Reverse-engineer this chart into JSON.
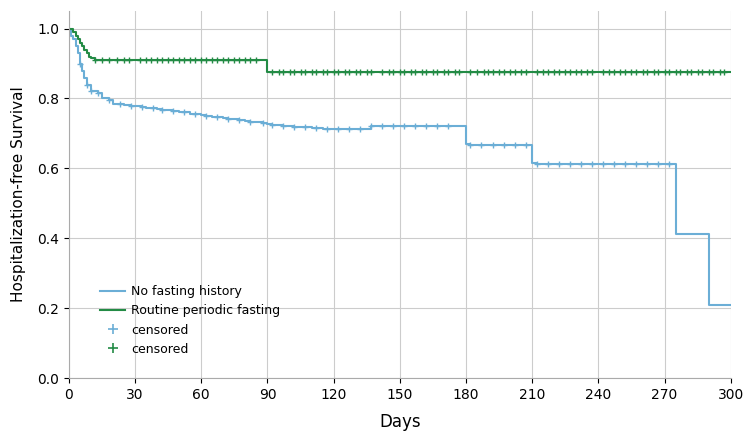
{
  "blue_steps": [
    [
      0,
      1.0
    ],
    [
      1,
      0.98
    ],
    [
      2,
      0.97
    ],
    [
      3,
      0.95
    ],
    [
      4,
      0.93
    ],
    [
      5,
      0.9
    ],
    [
      6,
      0.88
    ],
    [
      7,
      0.86
    ],
    [
      8,
      0.84
    ],
    [
      10,
      0.82
    ],
    [
      13,
      0.815
    ],
    [
      15,
      0.8
    ],
    [
      18,
      0.795
    ],
    [
      20,
      0.785
    ],
    [
      23,
      0.783
    ],
    [
      25,
      0.78
    ],
    [
      28,
      0.778
    ],
    [
      30,
      0.778
    ],
    [
      33,
      0.776
    ],
    [
      35,
      0.774
    ],
    [
      38,
      0.772
    ],
    [
      40,
      0.77
    ],
    [
      42,
      0.768
    ],
    [
      45,
      0.766
    ],
    [
      47,
      0.764
    ],
    [
      50,
      0.762
    ],
    [
      52,
      0.76
    ],
    [
      55,
      0.757
    ],
    [
      57,
      0.755
    ],
    [
      60,
      0.753
    ],
    [
      62,
      0.75
    ],
    [
      65,
      0.748
    ],
    [
      67,
      0.746
    ],
    [
      70,
      0.744
    ],
    [
      72,
      0.742
    ],
    [
      75,
      0.74
    ],
    [
      77,
      0.738
    ],
    [
      80,
      0.736
    ],
    [
      82,
      0.734
    ],
    [
      85,
      0.732
    ],
    [
      88,
      0.73
    ],
    [
      90,
      0.728
    ],
    [
      92,
      0.725
    ],
    [
      95,
      0.723
    ],
    [
      97,
      0.721
    ],
    [
      100,
      0.72
    ],
    [
      102,
      0.719
    ],
    [
      105,
      0.718
    ],
    [
      107,
      0.717
    ],
    [
      110,
      0.716
    ],
    [
      112,
      0.715
    ],
    [
      115,
      0.714
    ],
    [
      117,
      0.713
    ],
    [
      120,
      0.712
    ],
    [
      122,
      0.712
    ],
    [
      125,
      0.712
    ],
    [
      127,
      0.712
    ],
    [
      130,
      0.712
    ],
    [
      132,
      0.712
    ],
    [
      135,
      0.712
    ],
    [
      137,
      0.722
    ],
    [
      140,
      0.722
    ],
    [
      142,
      0.722
    ],
    [
      145,
      0.722
    ],
    [
      147,
      0.722
    ],
    [
      150,
      0.722
    ],
    [
      152,
      0.722
    ],
    [
      155,
      0.722
    ],
    [
      157,
      0.722
    ],
    [
      160,
      0.722
    ],
    [
      162,
      0.722
    ],
    [
      165,
      0.722
    ],
    [
      167,
      0.722
    ],
    [
      170,
      0.722
    ],
    [
      172,
      0.722
    ],
    [
      175,
      0.722
    ],
    [
      177,
      0.722
    ],
    [
      180,
      0.67
    ],
    [
      182,
      0.668
    ],
    [
      185,
      0.668
    ],
    [
      188,
      0.668
    ],
    [
      190,
      0.668
    ],
    [
      192,
      0.668
    ],
    [
      195,
      0.668
    ],
    [
      197,
      0.668
    ],
    [
      200,
      0.668
    ],
    [
      202,
      0.668
    ],
    [
      205,
      0.668
    ],
    [
      207,
      0.668
    ],
    [
      210,
      0.615
    ],
    [
      212,
      0.613
    ],
    [
      215,
      0.613
    ],
    [
      217,
      0.613
    ],
    [
      220,
      0.613
    ],
    [
      222,
      0.613
    ],
    [
      225,
      0.613
    ],
    [
      227,
      0.613
    ],
    [
      230,
      0.613
    ],
    [
      232,
      0.613
    ],
    [
      235,
      0.613
    ],
    [
      237,
      0.613
    ],
    [
      240,
      0.613
    ],
    [
      242,
      0.613
    ],
    [
      245,
      0.613
    ],
    [
      247,
      0.613
    ],
    [
      250,
      0.613
    ],
    [
      252,
      0.613
    ],
    [
      255,
      0.613
    ],
    [
      257,
      0.613
    ],
    [
      260,
      0.613
    ],
    [
      262,
      0.613
    ],
    [
      265,
      0.613
    ],
    [
      267,
      0.613
    ],
    [
      270,
      0.613
    ],
    [
      272,
      0.613
    ],
    [
      275,
      0.413
    ],
    [
      277,
      0.413
    ],
    [
      280,
      0.413
    ],
    [
      282,
      0.413
    ],
    [
      285,
      0.413
    ],
    [
      287,
      0.413
    ],
    [
      290,
      0.208
    ],
    [
      292,
      0.208
    ],
    [
      295,
      0.208
    ],
    [
      297,
      0.208
    ],
    [
      300,
      0.208
    ]
  ],
  "blue_censored": [
    [
      5,
      0.9
    ],
    [
      8,
      0.84
    ],
    [
      10,
      0.82
    ],
    [
      13,
      0.815
    ],
    [
      18,
      0.795
    ],
    [
      23,
      0.783
    ],
    [
      28,
      0.778
    ],
    [
      33,
      0.776
    ],
    [
      38,
      0.772
    ],
    [
      42,
      0.768
    ],
    [
      47,
      0.764
    ],
    [
      52,
      0.76
    ],
    [
      57,
      0.755
    ],
    [
      62,
      0.75
    ],
    [
      67,
      0.746
    ],
    [
      72,
      0.742
    ],
    [
      77,
      0.738
    ],
    [
      82,
      0.734
    ],
    [
      88,
      0.73
    ],
    [
      92,
      0.725
    ],
    [
      97,
      0.721
    ],
    [
      102,
      0.719
    ],
    [
      107,
      0.717
    ],
    [
      112,
      0.715
    ],
    [
      117,
      0.713
    ],
    [
      122,
      0.712
    ],
    [
      127,
      0.712
    ],
    [
      132,
      0.712
    ],
    [
      137,
      0.722
    ],
    [
      142,
      0.722
    ],
    [
      147,
      0.722
    ],
    [
      152,
      0.722
    ],
    [
      157,
      0.722
    ],
    [
      162,
      0.722
    ],
    [
      167,
      0.722
    ],
    [
      172,
      0.722
    ],
    [
      182,
      0.668
    ],
    [
      187,
      0.668
    ],
    [
      192,
      0.668
    ],
    [
      197,
      0.668
    ],
    [
      202,
      0.668
    ],
    [
      207,
      0.668
    ],
    [
      212,
      0.613
    ],
    [
      217,
      0.613
    ],
    [
      222,
      0.613
    ],
    [
      227,
      0.613
    ],
    [
      232,
      0.613
    ],
    [
      237,
      0.613
    ],
    [
      242,
      0.613
    ],
    [
      247,
      0.613
    ],
    [
      252,
      0.613
    ],
    [
      257,
      0.613
    ],
    [
      262,
      0.613
    ],
    [
      267,
      0.613
    ],
    [
      272,
      0.613
    ]
  ],
  "green_steps": [
    [
      0,
      1.0
    ],
    [
      1,
      1.0
    ],
    [
      2,
      0.99
    ],
    [
      3,
      0.98
    ],
    [
      4,
      0.97
    ],
    [
      5,
      0.96
    ],
    [
      6,
      0.95
    ],
    [
      7,
      0.94
    ],
    [
      8,
      0.93
    ],
    [
      9,
      0.92
    ],
    [
      10,
      0.915
    ],
    [
      12,
      0.91
    ],
    [
      15,
      0.91
    ],
    [
      18,
      0.91
    ],
    [
      20,
      0.91
    ],
    [
      22,
      0.91
    ],
    [
      25,
      0.91
    ],
    [
      27,
      0.91
    ],
    [
      30,
      0.91
    ],
    [
      32,
      0.91
    ],
    [
      35,
      0.91
    ],
    [
      37,
      0.91
    ],
    [
      40,
      0.91
    ],
    [
      42,
      0.91
    ],
    [
      45,
      0.91
    ],
    [
      47,
      0.91
    ],
    [
      50,
      0.91
    ],
    [
      52,
      0.91
    ],
    [
      55,
      0.91
    ],
    [
      57,
      0.91
    ],
    [
      60,
      0.91
    ],
    [
      62,
      0.91
    ],
    [
      65,
      0.91
    ],
    [
      67,
      0.91
    ],
    [
      70,
      0.91
    ],
    [
      72,
      0.91
    ],
    [
      75,
      0.91
    ],
    [
      77,
      0.91
    ],
    [
      80,
      0.91
    ],
    [
      82,
      0.91
    ],
    [
      85,
      0.91
    ],
    [
      88,
      0.91
    ],
    [
      90,
      0.875
    ],
    [
      92,
      0.875
    ],
    [
      95,
      0.875
    ],
    [
      97,
      0.875
    ],
    [
      100,
      0.875
    ],
    [
      102,
      0.875
    ],
    [
      105,
      0.875
    ],
    [
      107,
      0.875
    ],
    [
      110,
      0.875
    ],
    [
      112,
      0.875
    ],
    [
      115,
      0.875
    ],
    [
      117,
      0.875
    ],
    [
      120,
      0.875
    ],
    [
      122,
      0.875
    ],
    [
      125,
      0.875
    ],
    [
      127,
      0.875
    ],
    [
      130,
      0.875
    ],
    [
      132,
      0.875
    ],
    [
      135,
      0.875
    ],
    [
      137,
      0.875
    ],
    [
      140,
      0.875
    ],
    [
      142,
      0.875
    ],
    [
      145,
      0.875
    ],
    [
      147,
      0.875
    ],
    [
      150,
      0.875
    ],
    [
      152,
      0.875
    ],
    [
      155,
      0.875
    ],
    [
      157,
      0.875
    ],
    [
      160,
      0.875
    ],
    [
      162,
      0.875
    ],
    [
      165,
      0.875
    ],
    [
      167,
      0.875
    ],
    [
      170,
      0.875
    ],
    [
      172,
      0.875
    ],
    [
      175,
      0.875
    ],
    [
      177,
      0.875
    ],
    [
      180,
      0.875
    ],
    [
      182,
      0.875
    ],
    [
      185,
      0.875
    ],
    [
      188,
      0.875
    ],
    [
      190,
      0.875
    ],
    [
      192,
      0.875
    ],
    [
      195,
      0.875
    ],
    [
      197,
      0.875
    ],
    [
      200,
      0.875
    ],
    [
      202,
      0.875
    ],
    [
      205,
      0.875
    ],
    [
      207,
      0.875
    ],
    [
      210,
      0.875
    ],
    [
      212,
      0.875
    ],
    [
      215,
      0.875
    ],
    [
      217,
      0.875
    ],
    [
      220,
      0.875
    ],
    [
      222,
      0.875
    ],
    [
      225,
      0.875
    ],
    [
      227,
      0.875
    ],
    [
      230,
      0.875
    ],
    [
      232,
      0.875
    ],
    [
      235,
      0.875
    ],
    [
      237,
      0.875
    ],
    [
      240,
      0.875
    ],
    [
      242,
      0.875
    ],
    [
      245,
      0.875
    ],
    [
      247,
      0.875
    ],
    [
      250,
      0.875
    ],
    [
      252,
      0.875
    ],
    [
      255,
      0.875
    ],
    [
      257,
      0.875
    ],
    [
      260,
      0.875
    ],
    [
      262,
      0.875
    ],
    [
      265,
      0.875
    ],
    [
      267,
      0.875
    ],
    [
      270,
      0.875
    ],
    [
      272,
      0.875
    ],
    [
      275,
      0.875
    ],
    [
      277,
      0.875
    ],
    [
      280,
      0.875
    ],
    [
      282,
      0.875
    ],
    [
      285,
      0.875
    ],
    [
      287,
      0.875
    ],
    [
      290,
      0.875
    ],
    [
      292,
      0.875
    ],
    [
      295,
      0.875
    ],
    [
      297,
      0.875
    ],
    [
      300,
      0.875
    ]
  ],
  "green_censored": [
    [
      12,
      0.91
    ],
    [
      15,
      0.91
    ],
    [
      18,
      0.91
    ],
    [
      22,
      0.91
    ],
    [
      25,
      0.91
    ],
    [
      27,
      0.91
    ],
    [
      32,
      0.91
    ],
    [
      35,
      0.91
    ],
    [
      37,
      0.91
    ],
    [
      40,
      0.91
    ],
    [
      42,
      0.91
    ],
    [
      45,
      0.91
    ],
    [
      47,
      0.91
    ],
    [
      50,
      0.91
    ],
    [
      52,
      0.91
    ],
    [
      55,
      0.91
    ],
    [
      57,
      0.91
    ],
    [
      60,
      0.91
    ],
    [
      62,
      0.91
    ],
    [
      65,
      0.91
    ],
    [
      67,
      0.91
    ],
    [
      70,
      0.91
    ],
    [
      72,
      0.91
    ],
    [
      75,
      0.91
    ],
    [
      77,
      0.91
    ],
    [
      80,
      0.91
    ],
    [
      82,
      0.91
    ],
    [
      85,
      0.91
    ],
    [
      92,
      0.875
    ],
    [
      95,
      0.875
    ],
    [
      97,
      0.875
    ],
    [
      100,
      0.875
    ],
    [
      102,
      0.875
    ],
    [
      105,
      0.875
    ],
    [
      107,
      0.875
    ],
    [
      110,
      0.875
    ],
    [
      112,
      0.875
    ],
    [
      115,
      0.875
    ],
    [
      117,
      0.875
    ],
    [
      120,
      0.875
    ],
    [
      122,
      0.875
    ],
    [
      125,
      0.875
    ],
    [
      127,
      0.875
    ],
    [
      130,
      0.875
    ],
    [
      132,
      0.875
    ],
    [
      135,
      0.875
    ],
    [
      137,
      0.875
    ],
    [
      142,
      0.875
    ],
    [
      145,
      0.875
    ],
    [
      147,
      0.875
    ],
    [
      150,
      0.875
    ],
    [
      152,
      0.875
    ],
    [
      155,
      0.875
    ],
    [
      157,
      0.875
    ],
    [
      160,
      0.875
    ],
    [
      162,
      0.875
    ],
    [
      165,
      0.875
    ],
    [
      167,
      0.875
    ],
    [
      170,
      0.875
    ],
    [
      172,
      0.875
    ],
    [
      175,
      0.875
    ],
    [
      177,
      0.875
    ],
    [
      182,
      0.875
    ],
    [
      185,
      0.875
    ],
    [
      188,
      0.875
    ],
    [
      190,
      0.875
    ],
    [
      192,
      0.875
    ],
    [
      195,
      0.875
    ],
    [
      197,
      0.875
    ],
    [
      200,
      0.875
    ],
    [
      202,
      0.875
    ],
    [
      205,
      0.875
    ],
    [
      207,
      0.875
    ],
    [
      212,
      0.875
    ],
    [
      215,
      0.875
    ],
    [
      217,
      0.875
    ],
    [
      220,
      0.875
    ],
    [
      222,
      0.875
    ],
    [
      225,
      0.875
    ],
    [
      227,
      0.875
    ],
    [
      230,
      0.875
    ],
    [
      232,
      0.875
    ],
    [
      235,
      0.875
    ],
    [
      237,
      0.875
    ],
    [
      242,
      0.875
    ],
    [
      245,
      0.875
    ],
    [
      247,
      0.875
    ],
    [
      250,
      0.875
    ],
    [
      252,
      0.875
    ],
    [
      255,
      0.875
    ],
    [
      257,
      0.875
    ],
    [
      260,
      0.875
    ],
    [
      262,
      0.875
    ],
    [
      265,
      0.875
    ],
    [
      267,
      0.875
    ],
    [
      270,
      0.875
    ],
    [
      272,
      0.875
    ],
    [
      275,
      0.875
    ],
    [
      277,
      0.875
    ],
    [
      280,
      0.875
    ],
    [
      282,
      0.875
    ],
    [
      285,
      0.875
    ],
    [
      287,
      0.875
    ],
    [
      290,
      0.875
    ],
    [
      292,
      0.875
    ],
    [
      295,
      0.875
    ],
    [
      297,
      0.875
    ]
  ],
  "blue_color": "#6baed6",
  "green_color": "#238b45",
  "xlabel": "Days",
  "ylabel": "Hospitalization-free Survival",
  "xlim": [
    0,
    300
  ],
  "ylim": [
    0.0,
    1.05
  ],
  "xticks": [
    0,
    30,
    60,
    90,
    120,
    150,
    180,
    210,
    240,
    270,
    300
  ],
  "yticks": [
    0.0,
    0.2,
    0.4,
    0.6,
    0.8,
    1.0
  ],
  "legend_labels": [
    "No fasting history",
    "Routine periodic fasting",
    "censored",
    "censored"
  ],
  "background_color": "#ffffff",
  "grid_color": "#cccccc"
}
